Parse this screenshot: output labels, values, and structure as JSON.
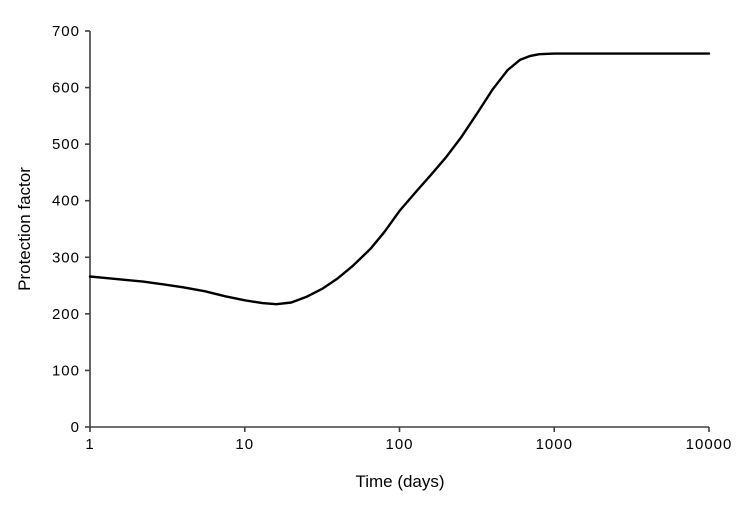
{
  "chart_data": {
    "type": "line",
    "title": "",
    "xlabel": "Time (days)",
    "ylabel": "Protection factor",
    "x_scale": "log",
    "xlim": [
      1,
      10000
    ],
    "ylim": [
      0,
      700
    ],
    "x_ticks": [
      1,
      10,
      100,
      1000,
      10000
    ],
    "y_ticks": [
      0,
      100,
      200,
      300,
      400,
      500,
      600,
      700
    ],
    "grid": false,
    "legend": false,
    "line_color": "#000000",
    "axis_color": "#404040",
    "background_color": "#ffffff",
    "series": [
      {
        "name": "Protection factor",
        "points": [
          [
            1,
            266
          ],
          [
            1.3,
            263
          ],
          [
            1.7,
            260
          ],
          [
            2.2,
            257
          ],
          [
            3,
            252
          ],
          [
            4,
            247
          ],
          [
            5.5,
            240
          ],
          [
            7.5,
            231
          ],
          [
            10,
            224
          ],
          [
            13,
            219
          ],
          [
            16,
            217
          ],
          [
            20,
            220
          ],
          [
            25,
            230
          ],
          [
            32,
            245
          ],
          [
            40,
            263
          ],
          [
            50,
            285
          ],
          [
            65,
            315
          ],
          [
            80,
            345
          ],
          [
            100,
            382
          ],
          [
            130,
            418
          ],
          [
            160,
            446
          ],
          [
            200,
            477
          ],
          [
            250,
            512
          ],
          [
            320,
            556
          ],
          [
            400,
            597
          ],
          [
            500,
            631
          ],
          [
            600,
            649
          ],
          [
            700,
            656
          ],
          [
            800,
            659
          ],
          [
            1000,
            660
          ],
          [
            1500,
            660
          ],
          [
            2000,
            660
          ],
          [
            3000,
            660
          ],
          [
            5000,
            660
          ],
          [
            10000,
            660
          ]
        ]
      }
    ]
  }
}
